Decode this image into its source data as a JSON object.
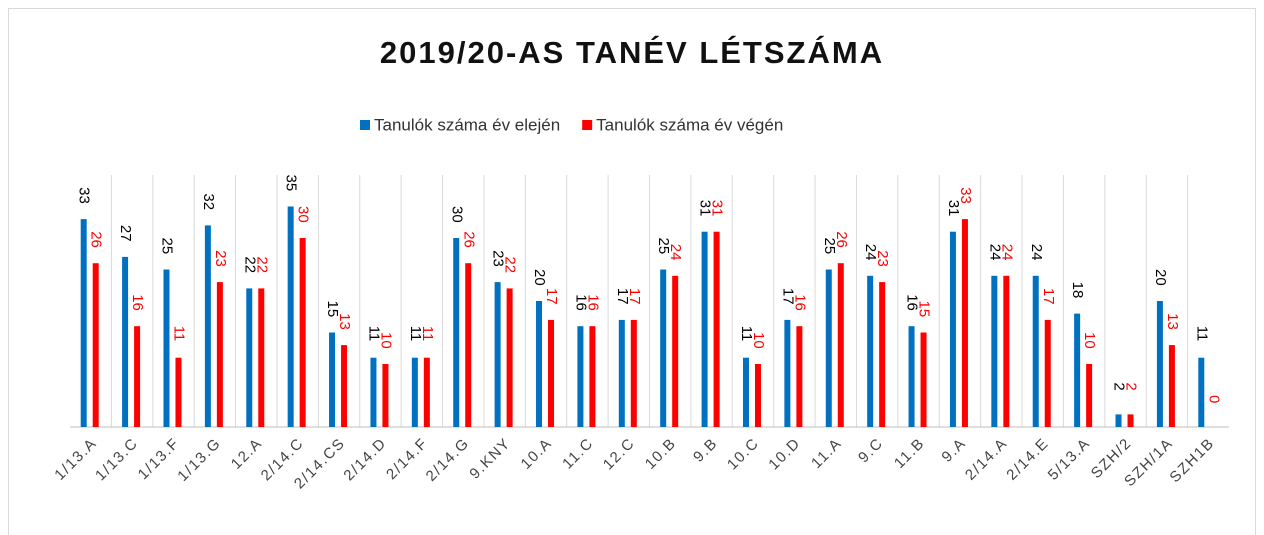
{
  "chart_data": {
    "type": "bar",
    "title": "2019/20-AS TANÉV LÉTSZÁMA",
    "categories": [
      "1/13.A",
      "1/13.C",
      "1/13.F",
      "1/13.G",
      "12.A",
      "2/14.C",
      "2/14.CS",
      "2/14.D",
      "2/14.F",
      "2/14.G",
      "9.KNY",
      "10.A",
      "11.C",
      "12.C",
      "10.B",
      "9.B",
      "10.C",
      "10.D",
      "11.A",
      "9.C",
      "11.B",
      "9.A",
      "2/14.A",
      "2/14.E",
      "5/13.A",
      "SZH/2",
      "SZH/1A",
      "SZH1B"
    ],
    "series": [
      {
        "name": "Tanulók száma év elején",
        "color": "#0070c0",
        "label_color": "#000000",
        "values": [
          33,
          27,
          25,
          32,
          22,
          35,
          15,
          11,
          11,
          30,
          23,
          20,
          16,
          17,
          25,
          31,
          11,
          17,
          25,
          24,
          16,
          31,
          24,
          24,
          18,
          2,
          20,
          11
        ]
      },
      {
        "name": "Tanulók száma év végén",
        "color": "#ff0000",
        "label_color": "#ff0000",
        "values": [
          26,
          16,
          11,
          23,
          22,
          30,
          13,
          10,
          11,
          26,
          22,
          17,
          16,
          17,
          24,
          31,
          10,
          16,
          26,
          23,
          15,
          33,
          24,
          17,
          10,
          2,
          13,
          0
        ]
      }
    ],
    "ylim": [
      0,
      40
    ],
    "grid": true
  }
}
